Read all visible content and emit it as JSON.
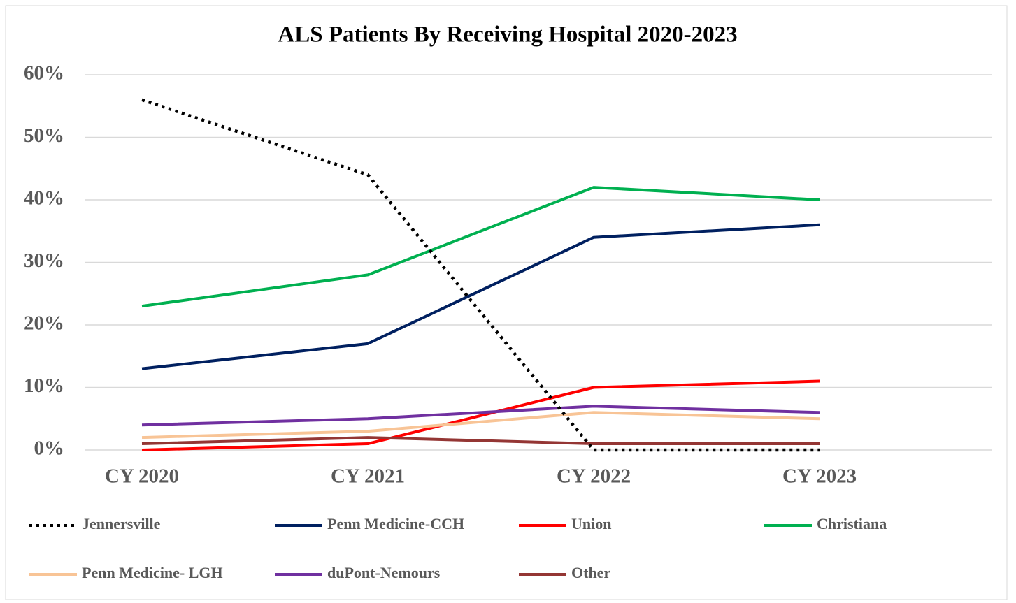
{
  "chart_data": {
    "type": "line",
    "title": "ALS Patients By Receiving Hospital 2020-2023",
    "categories": [
      "CY 2020",
      "CY 2021",
      "CY 2022",
      "CY 2023"
    ],
    "series": [
      {
        "name": "Jennersville",
        "color": "#000000",
        "style": "dotted",
        "values": [
          56,
          44,
          0,
          0
        ]
      },
      {
        "name": "Penn Medicine-CCH",
        "color": "#002060",
        "values": [
          13,
          17,
          34,
          36
        ]
      },
      {
        "name": "Union",
        "color": "#ff0000",
        "values": [
          0,
          1,
          10,
          11
        ]
      },
      {
        "name": "Christiana",
        "color": "#00b050",
        "values": [
          23,
          28,
          42,
          40
        ]
      },
      {
        "name": "Penn Medicine- LGH",
        "color": "#f8c496",
        "values": [
          2,
          3,
          6,
          5
        ]
      },
      {
        "name": "duPont-Nemours",
        "color": "#7030a0",
        "values": [
          4,
          5,
          7,
          6
        ]
      },
      {
        "name": "Other",
        "color": "#943634",
        "values": [
          1,
          2,
          1,
          1
        ]
      }
    ],
    "ylim": [
      0,
      60
    ],
    "yticks": [
      {
        "value": 0,
        "label": "0%"
      },
      {
        "value": 10,
        "label": "10%"
      },
      {
        "value": 20,
        "label": "20%"
      },
      {
        "value": 30,
        "label": "30%"
      },
      {
        "value": 40,
        "label": "40%"
      },
      {
        "value": 50,
        "label": "50%"
      },
      {
        "value": 60,
        "label": "60%"
      }
    ],
    "grid": true,
    "legend": "bottom"
  }
}
